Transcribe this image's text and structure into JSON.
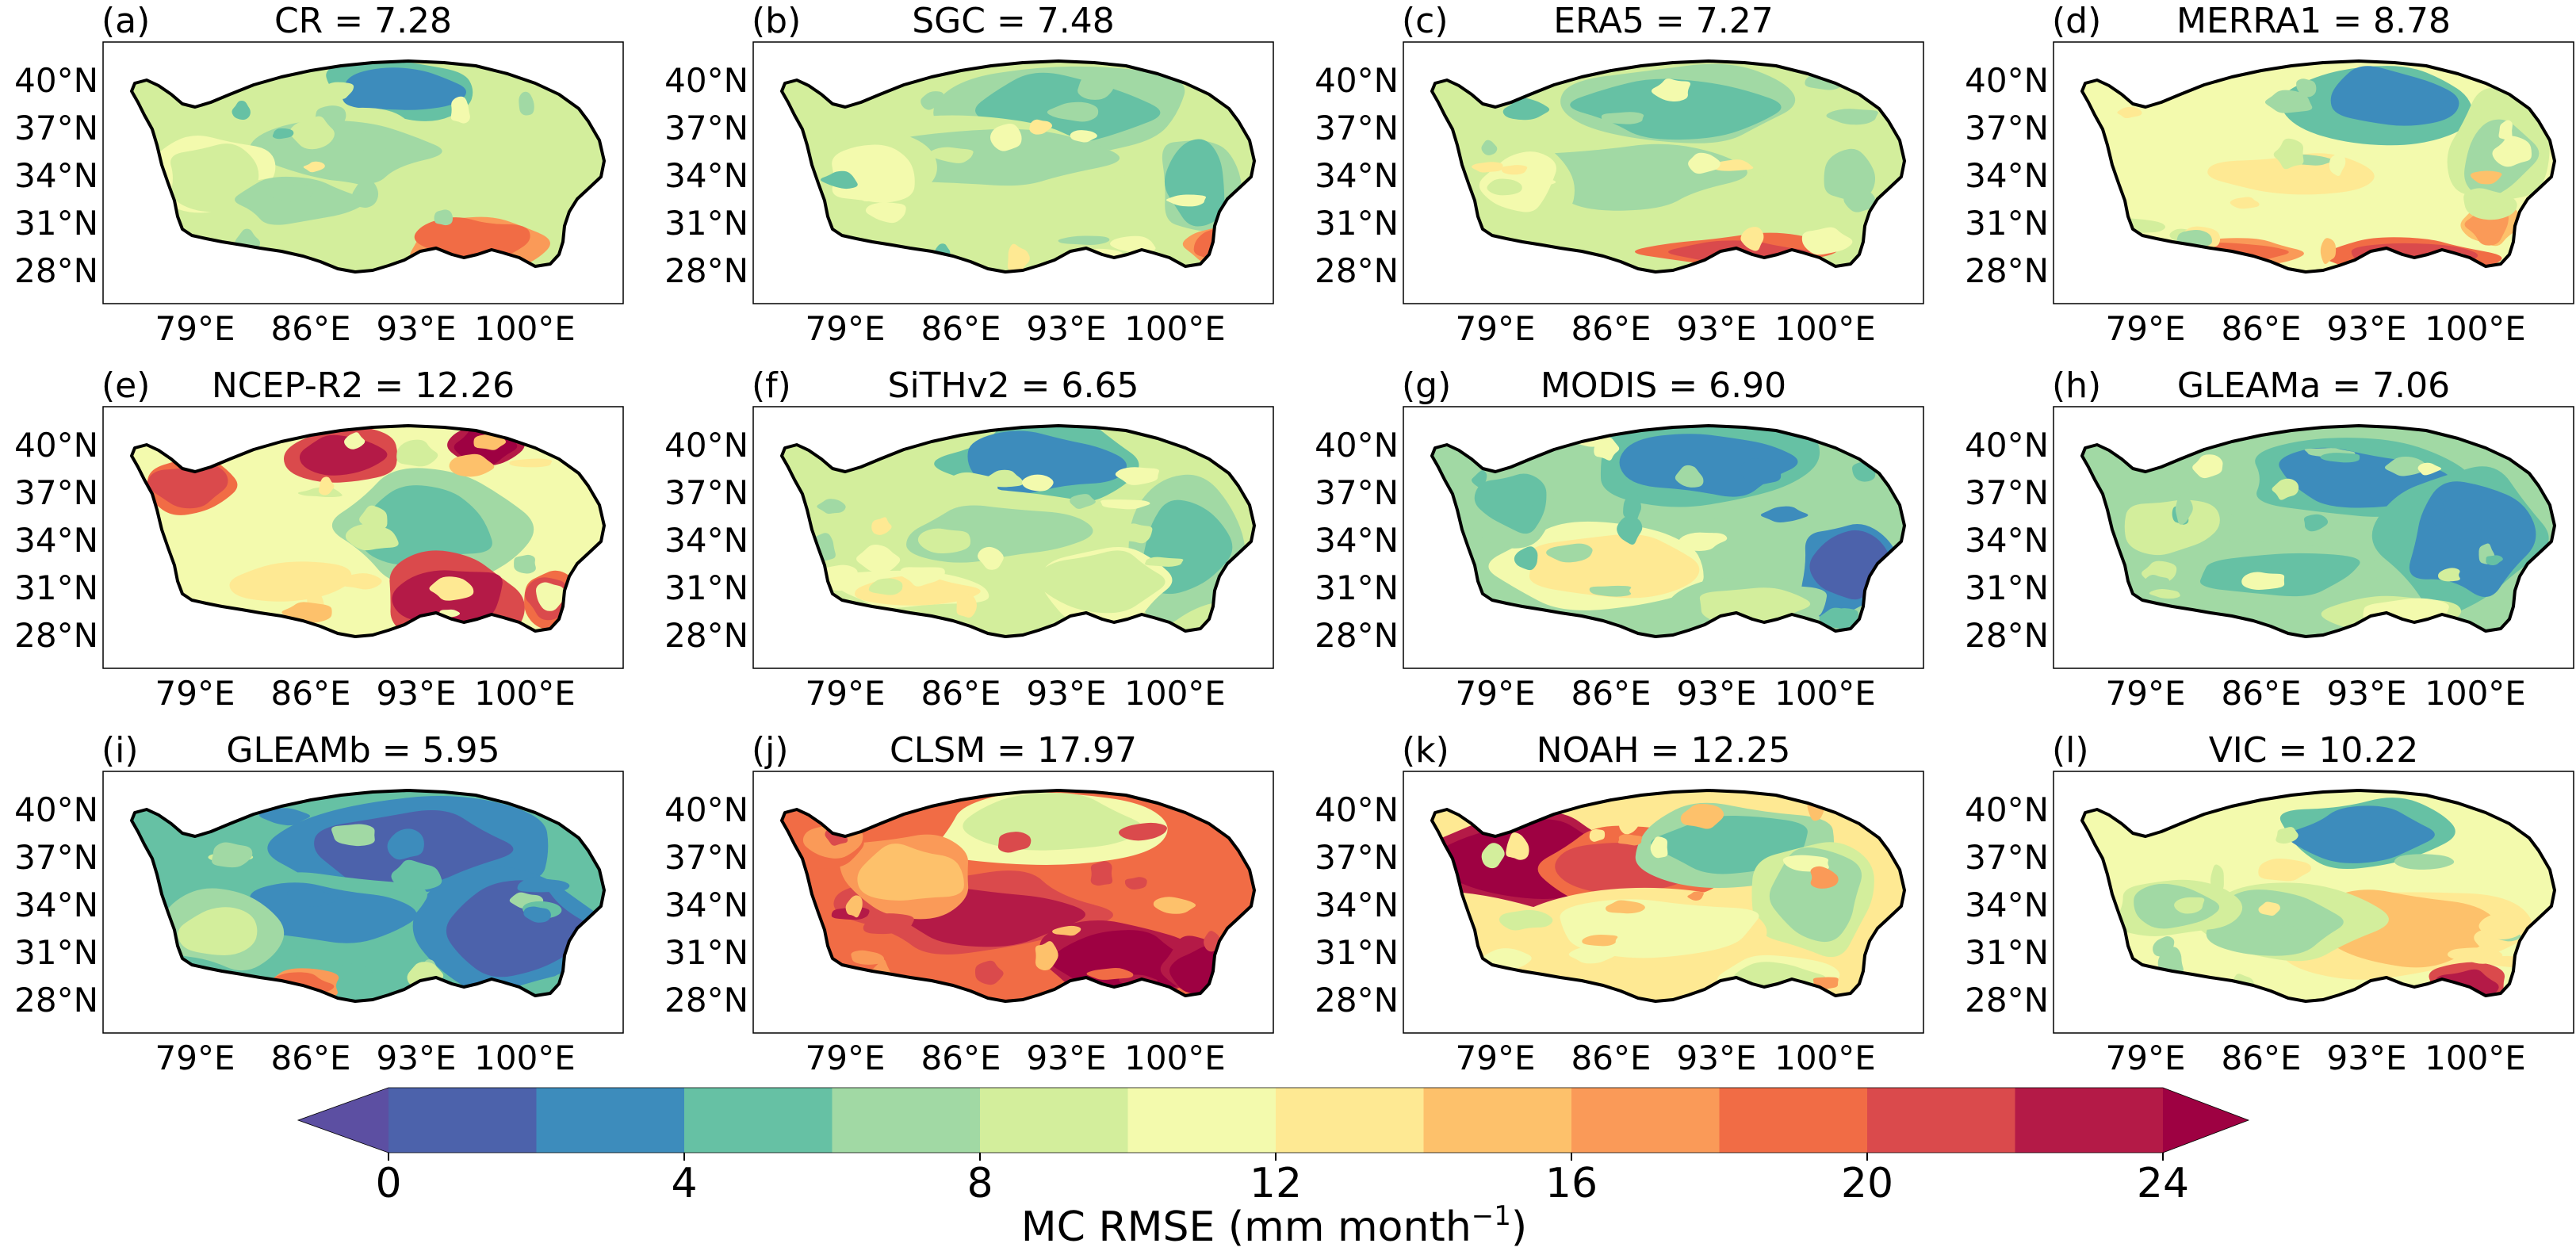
{
  "colorbar": {
    "ticks": [
      "0",
      "4",
      "8",
      "12",
      "16",
      "20",
      "24"
    ],
    "label": "MC RMSE (mm month",
    "label_sup": "−1",
    "label_close": ")",
    "bin_colors": [
      "#5c4fa2",
      "#4c62ab",
      "#3d8cbc",
      "#66c1a4",
      "#a1d9a4",
      "#d3ee9c",
      "#f3faad",
      "#fee993",
      "#fdc16b",
      "#fa9a58",
      "#f16c45",
      "#da4a4c",
      "#b41a47",
      "#9e0142"
    ]
  },
  "chart_data": [
    {
      "type": "heatmap",
      "panel_letter": "(a)",
      "title": "CR = 7.28",
      "dataset": "CR",
      "rmse": 7.28,
      "y_ticks": [
        "40°N",
        "37°N",
        "34°N",
        "31°N",
        "28°N"
      ],
      "x_ticks": [
        "79°E",
        "86°E",
        "93°E",
        "100°E"
      ]
    },
    {
      "type": "heatmap",
      "panel_letter": "(b)",
      "title": "SGC = 7.48",
      "dataset": "SGC",
      "rmse": 7.48,
      "y_ticks": [
        "40°N",
        "37°N",
        "34°N",
        "31°N",
        "28°N"
      ],
      "x_ticks": [
        "79°E",
        "86°E",
        "93°E",
        "100°E"
      ]
    },
    {
      "type": "heatmap",
      "panel_letter": "(c)",
      "title": "ERA5 = 7.27",
      "dataset": "ERA5",
      "rmse": 7.27,
      "y_ticks": [
        "40°N",
        "37°N",
        "34°N",
        "31°N",
        "28°N"
      ],
      "x_ticks": [
        "79°E",
        "86°E",
        "93°E",
        "100°E"
      ]
    },
    {
      "type": "heatmap",
      "panel_letter": "(d)",
      "title": "MERRA1 = 8.78",
      "dataset": "MERRA1",
      "rmse": 8.78,
      "y_ticks": [
        "40°N",
        "37°N",
        "34°N",
        "31°N",
        "28°N"
      ],
      "x_ticks": [
        "79°E",
        "86°E",
        "93°E",
        "100°E"
      ]
    },
    {
      "type": "heatmap",
      "panel_letter": "(e)",
      "title": "NCEP-R2 = 12.26",
      "dataset": "NCEP-R2",
      "rmse": 12.26,
      "y_ticks": [
        "40°N",
        "37°N",
        "34°N",
        "31°N",
        "28°N"
      ],
      "x_ticks": [
        "79°E",
        "86°E",
        "93°E",
        "100°E"
      ]
    },
    {
      "type": "heatmap",
      "panel_letter": "(f)",
      "title": "SiTHv2 =  6.65",
      "dataset": "SiTHv2",
      "rmse": 6.65,
      "y_ticks": [
        "40°N",
        "37°N",
        "34°N",
        "31°N",
        "28°N"
      ],
      "x_ticks": [
        "79°E",
        "86°E",
        "93°E",
        "100°E"
      ]
    },
    {
      "type": "heatmap",
      "panel_letter": "(g)",
      "title": "MODIS = 6.90",
      "dataset": "MODIS",
      "rmse": 6.9,
      "y_ticks": [
        "40°N",
        "37°N",
        "34°N",
        "31°N",
        "28°N"
      ],
      "x_ticks": [
        "79°E",
        "86°E",
        "93°E",
        "100°E"
      ]
    },
    {
      "type": "heatmap",
      "panel_letter": "(h)",
      "title": "GLEAMa = 7.06",
      "dataset": "GLEAMa",
      "rmse": 7.06,
      "y_ticks": [
        "40°N",
        "37°N",
        "34°N",
        "31°N",
        "28°N"
      ],
      "x_ticks": [
        "79°E",
        "86°E",
        "93°E",
        "100°E"
      ]
    },
    {
      "type": "heatmap",
      "panel_letter": "(i)",
      "title": "GLEAMb = 5.95",
      "dataset": "GLEAMb",
      "rmse": 5.95,
      "y_ticks": [
        "40°N",
        "37°N",
        "34°N",
        "31°N",
        "28°N"
      ],
      "x_ticks": [
        "79°E",
        "86°E",
        "93°E",
        "100°E"
      ]
    },
    {
      "type": "heatmap",
      "panel_letter": "(j)",
      "title": "CLSM = 17.97",
      "dataset": "CLSM",
      "rmse": 17.97,
      "y_ticks": [
        "40°N",
        "37°N",
        "34°N",
        "31°N",
        "28°N"
      ],
      "x_ticks": [
        "79°E",
        "86°E",
        "93°E",
        "100°E"
      ]
    },
    {
      "type": "heatmap",
      "panel_letter": "(k)",
      "title": "NOAH = 12.25",
      "dataset": "NOAH",
      "rmse": 12.25,
      "y_ticks": [
        "40°N",
        "37°N",
        "34°N",
        "31°N",
        "28°N"
      ],
      "x_ticks": [
        "79°E",
        "86°E",
        "93°E",
        "100°E"
      ]
    },
    {
      "type": "heatmap",
      "panel_letter": "(l)",
      "title": "VIC = 10.22",
      "dataset": "VIC",
      "rmse": 10.22,
      "y_ticks": [
        "40°N",
        "37°N",
        "34°N",
        "31°N",
        "28°N"
      ],
      "x_ticks": [
        "79°E",
        "86°E",
        "93°E",
        "100°E"
      ]
    }
  ]
}
